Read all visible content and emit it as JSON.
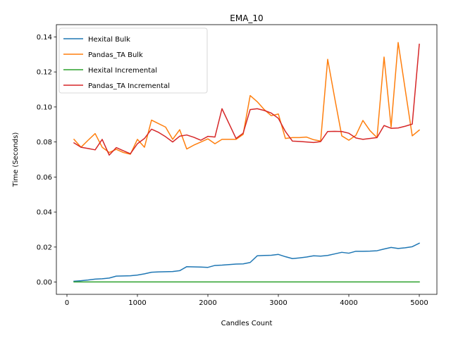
{
  "chart_data": {
    "type": "line",
    "title": "EMA_10",
    "xlabel": "Candles Count",
    "ylabel": "Time (Seconds)",
    "xlim": [
      -150,
      5250
    ],
    "ylim": [
      -0.007,
      0.147
    ],
    "x_ticks": [
      0,
      1000,
      2000,
      3000,
      4000,
      5000
    ],
    "x_tick_labels": [
      "0",
      "1000",
      "2000",
      "3000",
      "4000",
      "5000"
    ],
    "y_ticks": [
      0.0,
      0.02,
      0.04,
      0.06,
      0.08,
      0.1,
      0.12,
      0.14
    ],
    "y_tick_labels": [
      "0.00",
      "0.02",
      "0.04",
      "0.06",
      "0.08",
      "0.10",
      "0.12",
      "0.14"
    ],
    "grid": false,
    "legend_position": "top-left",
    "x": [
      100,
      200,
      300,
      400,
      500,
      600,
      700,
      800,
      900,
      1000,
      1100,
      1200,
      1300,
      1400,
      1500,
      1600,
      1700,
      1800,
      1900,
      2000,
      2100,
      2200,
      2300,
      2400,
      2500,
      2600,
      2700,
      2800,
      2900,
      3000,
      3100,
      3200,
      3300,
      3400,
      3500,
      3600,
      3700,
      3800,
      3900,
      4000,
      4100,
      4200,
      4300,
      4400,
      4500,
      4600,
      4700,
      4800,
      4900,
      5000
    ],
    "series": [
      {
        "name": "Hexital Bulk",
        "color": "#1f77b4",
        "values": [
          0.0005,
          0.0008,
          0.0012,
          0.0017,
          0.0019,
          0.0023,
          0.0034,
          0.0035,
          0.0036,
          0.004,
          0.0047,
          0.0056,
          0.0058,
          0.0059,
          0.006,
          0.0065,
          0.0088,
          0.0087,
          0.0086,
          0.0084,
          0.0095,
          0.0097,
          0.01,
          0.0103,
          0.0104,
          0.0112,
          0.015,
          0.0152,
          0.0153,
          0.0158,
          0.0145,
          0.0134,
          0.0138,
          0.0143,
          0.015,
          0.0148,
          0.0152,
          0.0161,
          0.017,
          0.0165,
          0.0176,
          0.0176,
          0.0177,
          0.0179,
          0.0189,
          0.0198,
          0.0192,
          0.0196,
          0.0202,
          0.0222
        ]
      },
      {
        "name": "Pandas_TA Bulk",
        "color": "#ff7f0e",
        "values": [
          0.0815,
          0.077,
          0.081,
          0.0848,
          0.077,
          0.074,
          0.0758,
          0.074,
          0.073,
          0.0815,
          0.077,
          0.0925,
          0.0905,
          0.0885,
          0.0815,
          0.087,
          0.076,
          0.0782,
          0.08,
          0.0818,
          0.079,
          0.0815,
          0.0815,
          0.0815,
          0.0843,
          0.1065,
          0.103,
          0.0985,
          0.095,
          0.096,
          0.082,
          0.0825,
          0.0825,
          0.0828,
          0.0813,
          0.0805,
          0.1272,
          0.105,
          0.0835,
          0.081,
          0.0838,
          0.0923,
          0.0865,
          0.0825,
          0.1285,
          0.0885,
          0.1368,
          0.11,
          0.0835,
          0.0868
        ]
      },
      {
        "name": "Hexital Incremental",
        "color": "#2ca02c",
        "values": [
          0.0001,
          0.0001,
          0.0001,
          0.0001,
          0.0001,
          0.0001,
          0.0001,
          0.0001,
          0.0001,
          0.0001,
          0.0001,
          0.0001,
          0.0001,
          0.0001,
          0.0001,
          0.0001,
          0.0001,
          0.0001,
          0.0001,
          0.0001,
          0.0001,
          0.0001,
          0.0001,
          0.0001,
          0.0001,
          0.0001,
          0.0001,
          0.0001,
          0.0001,
          0.0001,
          0.0001,
          0.0001,
          0.0001,
          0.0001,
          0.0001,
          0.0001,
          0.0001,
          0.0001,
          0.0001,
          0.0001,
          0.0001,
          0.0001,
          0.0001,
          0.0001,
          0.0001,
          0.0001,
          0.0001,
          0.0001,
          0.0001,
          0.0001
        ]
      },
      {
        "name": "Pandas_TA Incremental",
        "color": "#d62728",
        "values": [
          0.0795,
          0.077,
          0.0763,
          0.0755,
          0.0815,
          0.0725,
          0.0768,
          0.075,
          0.0733,
          0.079,
          0.082,
          0.0873,
          0.0855,
          0.083,
          0.08,
          0.0833,
          0.084,
          0.0827,
          0.081,
          0.0832,
          0.0828,
          0.099,
          0.0905,
          0.082,
          0.085,
          0.0985,
          0.099,
          0.098,
          0.0965,
          0.0935,
          0.086,
          0.0805,
          0.0803,
          0.08,
          0.0797,
          0.0802,
          0.086,
          0.0861,
          0.086,
          0.085,
          0.0823,
          0.0815,
          0.082,
          0.0825,
          0.0894,
          0.0878,
          0.088,
          0.089,
          0.0902,
          0.1358
        ]
      }
    ]
  }
}
